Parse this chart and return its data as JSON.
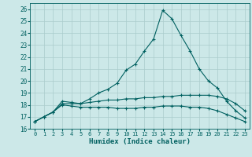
{
  "title": "",
  "xlabel": "Humidex (Indice chaleur)",
  "bg_color": "#cce8e8",
  "grid_color": "#aacccc",
  "line_color": "#006060",
  "x": [
    0,
    1,
    2,
    3,
    4,
    5,
    6,
    7,
    8,
    9,
    10,
    11,
    12,
    13,
    14,
    15,
    16,
    17,
    18,
    19,
    20,
    21,
    22,
    23
  ],
  "line1": [
    16.6,
    17.0,
    17.4,
    18.3,
    18.2,
    18.1,
    18.5,
    19.0,
    19.3,
    19.8,
    20.9,
    21.4,
    22.5,
    23.5,
    25.9,
    25.2,
    23.8,
    22.5,
    21.0,
    20.0,
    19.4,
    18.3,
    17.5,
    16.9
  ],
  "line2": [
    16.6,
    17.0,
    17.4,
    18.1,
    18.1,
    18.1,
    18.2,
    18.3,
    18.4,
    18.4,
    18.5,
    18.5,
    18.6,
    18.6,
    18.7,
    18.7,
    18.8,
    18.8,
    18.8,
    18.8,
    18.7,
    18.5,
    18.1,
    17.5
  ],
  "line3": [
    16.6,
    17.0,
    17.4,
    18.0,
    17.9,
    17.8,
    17.8,
    17.8,
    17.8,
    17.7,
    17.7,
    17.7,
    17.8,
    17.8,
    17.9,
    17.9,
    17.9,
    17.8,
    17.8,
    17.7,
    17.5,
    17.2,
    16.9,
    16.6
  ],
  "ylim": [
    16,
    26.5
  ],
  "xlim": [
    -0.5,
    23.5
  ],
  "yticks": [
    16,
    17,
    18,
    19,
    20,
    21,
    22,
    23,
    24,
    25,
    26
  ],
  "xticks": [
    0,
    1,
    2,
    3,
    4,
    5,
    6,
    7,
    8,
    9,
    10,
    11,
    12,
    13,
    14,
    15,
    16,
    17,
    18,
    19,
    20,
    21,
    22,
    23
  ],
  "markersize": 3.5,
  "linewidth": 0.8
}
